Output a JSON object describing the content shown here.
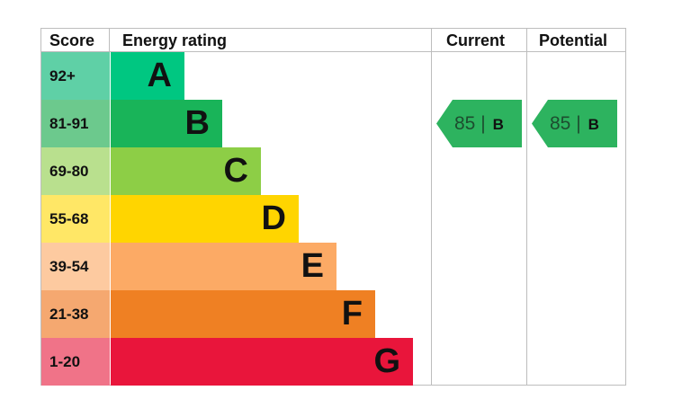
{
  "chart_data": {
    "type": "table",
    "headers": {
      "score": "Score",
      "rating": "Energy rating",
      "current": "Current",
      "potential": "Potential"
    },
    "bands": [
      {
        "letter": "A",
        "range": "92+",
        "color": "#00c781",
        "score_bg": "#5fd0a6"
      },
      {
        "letter": "B",
        "range": "81-91",
        "color": "#19b459",
        "score_bg": "#6cc98d"
      },
      {
        "letter": "C",
        "range": "69-80",
        "color": "#8dce46",
        "score_bg": "#b9e08e"
      },
      {
        "letter": "D",
        "range": "55-68",
        "color": "#ffd500",
        "score_bg": "#ffe766"
      },
      {
        "letter": "E",
        "range": "39-54",
        "color": "#fcaa65",
        "score_bg": "#fdcaa0"
      },
      {
        "letter": "F",
        "range": "21-38",
        "color": "#ef8023",
        "score_bg": "#f5a870"
      },
      {
        "letter": "G",
        "range": "1-20",
        "color": "#e9153b",
        "score_bg": "#f07388"
      }
    ],
    "current": {
      "value": 85,
      "separator": "|",
      "letter": "B",
      "color": "#2db35f"
    },
    "potential": {
      "value": 85,
      "separator": "|",
      "letter": "B",
      "color": "#2db35f"
    }
  }
}
